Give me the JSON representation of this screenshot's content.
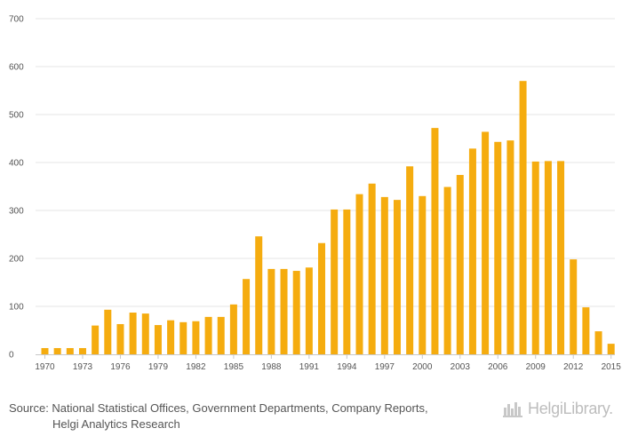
{
  "chart_data": {
    "type": "bar",
    "title": "",
    "xlabel": "",
    "ylabel": "",
    "ylim": [
      0,
      700
    ],
    "y_ticks": [
      "0",
      "100",
      "200",
      "300",
      "400",
      "500",
      "600",
      "700"
    ],
    "x_tick_labels": [
      "1970",
      "1973",
      "1976",
      "1979",
      "1982",
      "1985",
      "1988",
      "1991",
      "1994",
      "1997",
      "2000",
      "2003",
      "2006",
      "2009",
      "2012",
      "2015"
    ],
    "categories": [
      "1970",
      "1971",
      "1972",
      "1973",
      "1974",
      "1975",
      "1976",
      "1977",
      "1978",
      "1979",
      "1980",
      "1981",
      "1982",
      "1983",
      "1984",
      "1985",
      "1986",
      "1987",
      "1988",
      "1989",
      "1990",
      "1991",
      "1992",
      "1993",
      "1994",
      "1995",
      "1996",
      "1997",
      "1998",
      "1999",
      "2000",
      "2001",
      "2002",
      "2003",
      "2004",
      "2005",
      "2006",
      "2007",
      "2008",
      "2009",
      "2010",
      "2011",
      "2012",
      "2013",
      "2014",
      "2015"
    ],
    "values": [
      13,
      13,
      13,
      13,
      60,
      93,
      63,
      87,
      85,
      61,
      71,
      67,
      69,
      78,
      78,
      104,
      157,
      246,
      178,
      178,
      174,
      181,
      232,
      302,
      302,
      334,
      356,
      328,
      322,
      392,
      330,
      472,
      349,
      374,
      429,
      464,
      443,
      446,
      570,
      402,
      403,
      403,
      198,
      98,
      48,
      22
    ],
    "bar_color": "#f5ac0f",
    "grid": true
  },
  "source": {
    "line1": "Source: National Statistical Offices, Government Departments, Company Reports,",
    "line2": "Helgi Analytics Research"
  },
  "logo": {
    "text": "HelgiLibrary.",
    "icon": "skyline-icon"
  }
}
